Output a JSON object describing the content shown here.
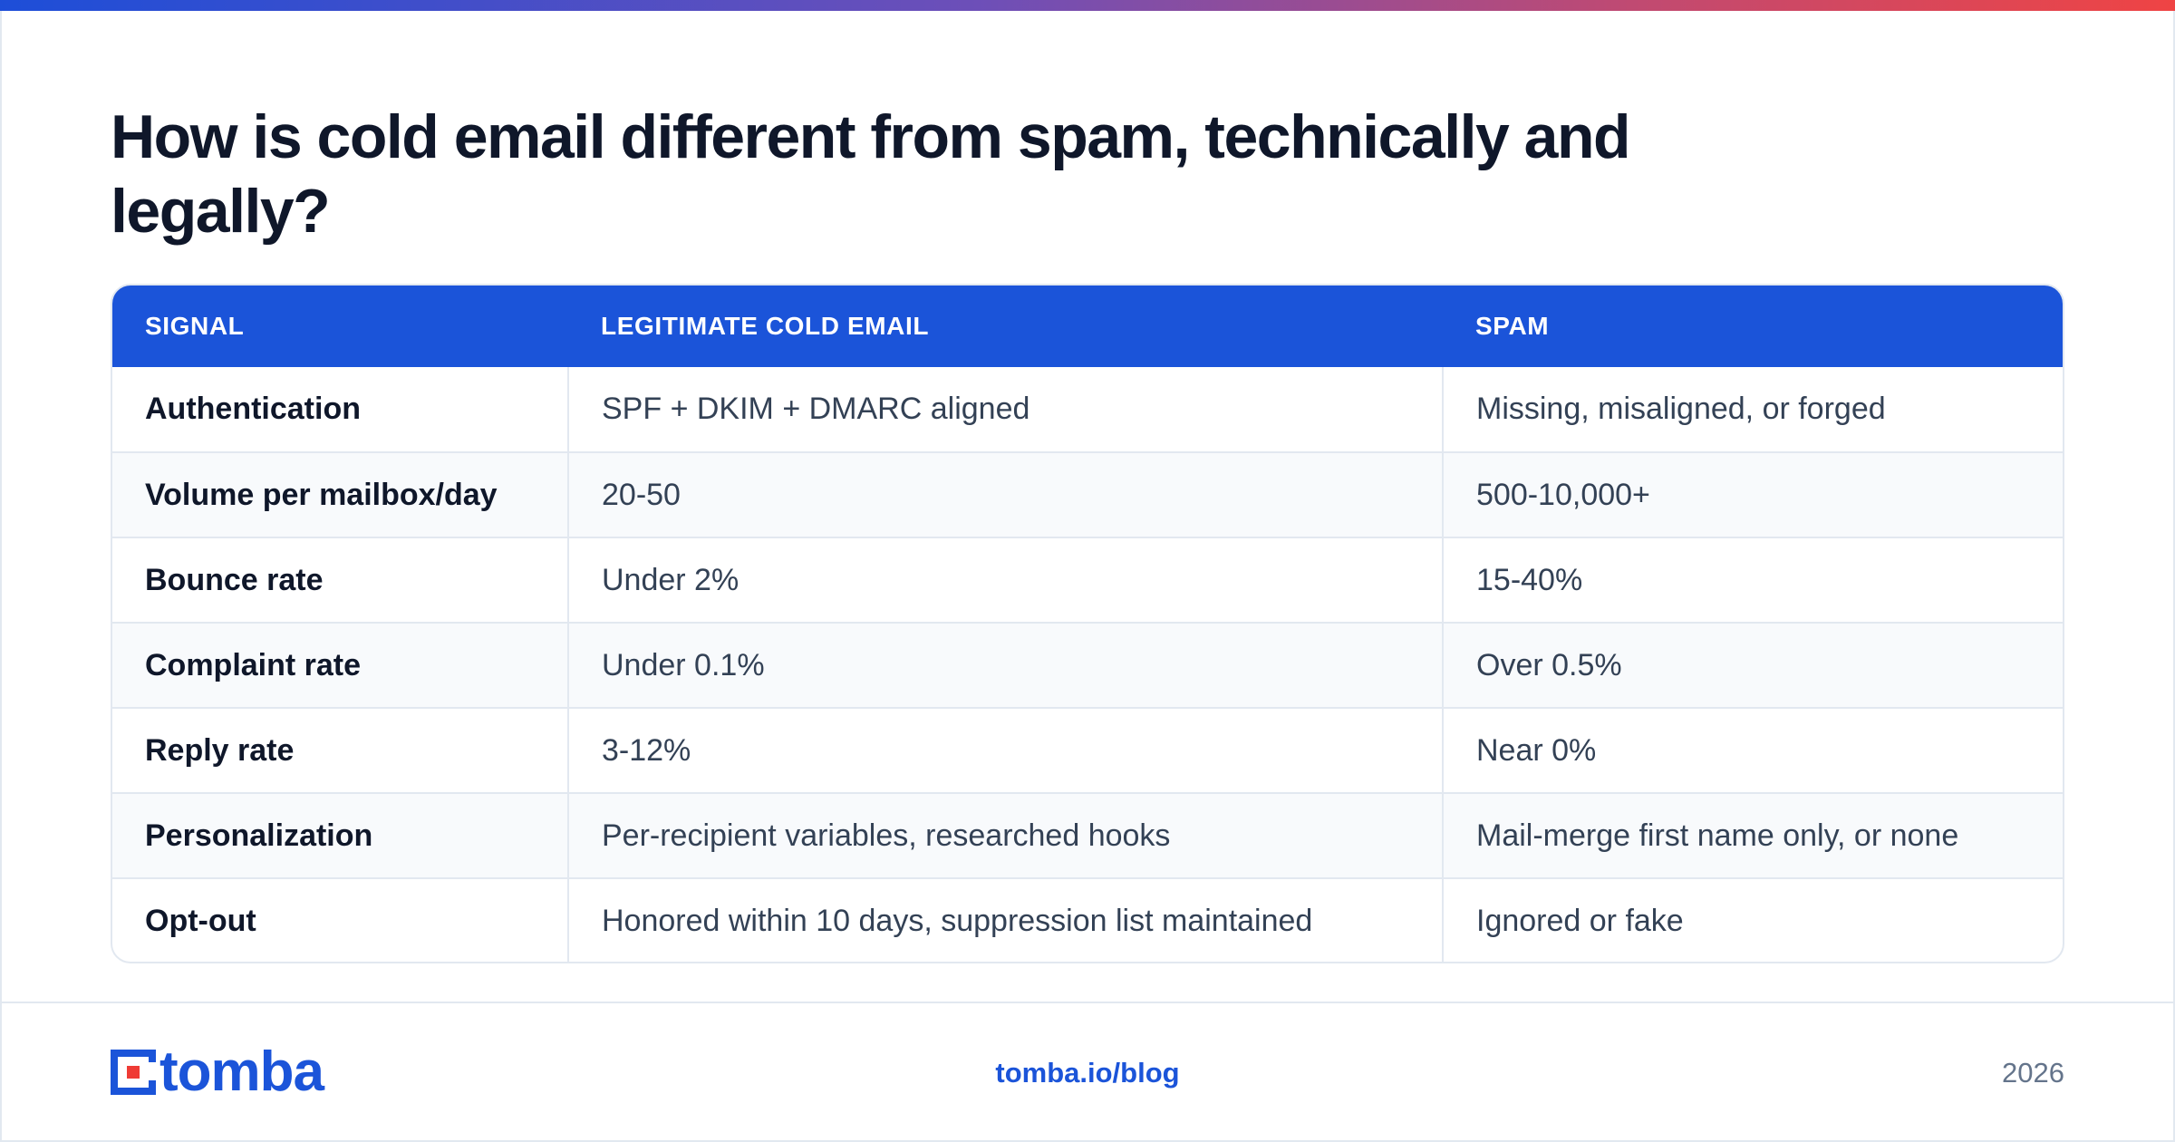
{
  "page": {
    "title": "How is cold email different from spam, technically and legally?",
    "accent_color": "#1b54d9",
    "gradient_colors": [
      "#1d4ed8",
      "#ef4444"
    ]
  },
  "table": {
    "headers": [
      "SIGNAL",
      "LEGITIMATE COLD EMAIL",
      "SPAM"
    ],
    "rows": [
      [
        "Authentication",
        "SPF + DKIM + DMARC aligned",
        "Missing, misaligned, or forged"
      ],
      [
        "Volume per mailbox/day",
        "20-50",
        "500-10,000+"
      ],
      [
        "Bounce rate",
        "Under 2%",
        "15-40%"
      ],
      [
        "Complaint rate",
        "Under 0.1%",
        "Over 0.5%"
      ],
      [
        "Reply rate",
        "3-12%",
        "Near 0%"
      ],
      [
        "Personalization",
        "Per-recipient variables, researched hooks",
        "Mail-merge first name only, or none"
      ],
      [
        "Opt-out",
        "Honored within 10 days, suppression list maintained",
        "Ignored or fake"
      ]
    ]
  },
  "footer": {
    "logo_text": "tomba",
    "url": "tomba.io/blog",
    "year": "2026"
  }
}
